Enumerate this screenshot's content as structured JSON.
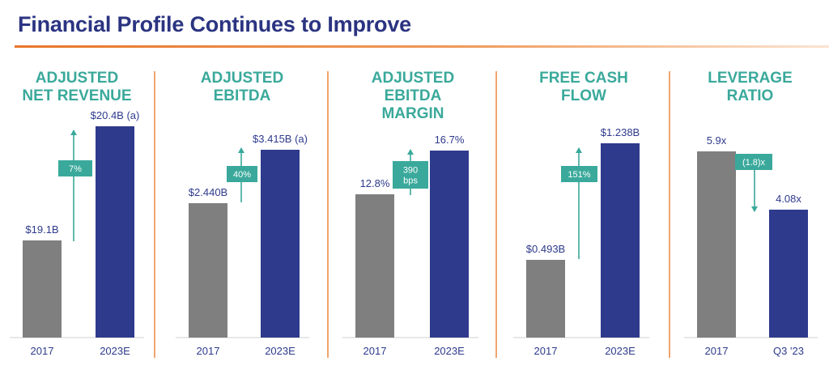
{
  "slide": {
    "title": "Financial Profile Continues to Improve"
  },
  "colors": {
    "title": "#2b3481",
    "panel_title": "#3aa99b",
    "bar_2017": "#7f7f7f",
    "bar_latest": "#2e3a8c",
    "change_box": "#3aa99b",
    "accent_rule": "#e8762a"
  },
  "chart_data": [
    {
      "type": "bar",
      "title": "ADJUSTED\nNET REVENUE",
      "categories": [
        "2017",
        "2023E"
      ],
      "values": [
        19.1,
        20.4
      ],
      "value_labels": [
        "$19.1B",
        "$20.4B (a)"
      ],
      "change_label": "7%",
      "change_direction": "up",
      "unit": "$B"
    },
    {
      "type": "bar",
      "title": "ADJUSTED\nEBITDA",
      "categories": [
        "2017",
        "2023E"
      ],
      "values": [
        2.44,
        3.415
      ],
      "value_labels": [
        "$2.440B",
        "$3.415B (a)"
      ],
      "change_label": "40%",
      "change_direction": "up",
      "unit": "$B"
    },
    {
      "type": "bar",
      "title": "ADJUSTED\nEBITDA\nMARGIN",
      "categories": [
        "2017",
        "2023E"
      ],
      "values": [
        12.8,
        16.7
      ],
      "value_labels": [
        "12.8%",
        "16.7%"
      ],
      "change_label": "390\nbps",
      "change_direction": "up",
      "unit": "%"
    },
    {
      "type": "bar",
      "title": "FREE CASH\nFLOW",
      "categories": [
        "2017",
        "2023E"
      ],
      "values": [
        0.493,
        1.238
      ],
      "value_labels": [
        "$0.493B",
        "$1.238B"
      ],
      "change_label": "151%",
      "change_direction": "up",
      "unit": "$B"
    },
    {
      "type": "bar",
      "title": "LEVERAGE\nRATIO",
      "categories": [
        "2017",
        "Q3 '23"
      ],
      "values": [
        5.9,
        4.08
      ],
      "value_labels": [
        "5.9x",
        "4.08x"
      ],
      "change_label": "(1.8)x",
      "change_direction": "down",
      "unit": "x"
    }
  ]
}
